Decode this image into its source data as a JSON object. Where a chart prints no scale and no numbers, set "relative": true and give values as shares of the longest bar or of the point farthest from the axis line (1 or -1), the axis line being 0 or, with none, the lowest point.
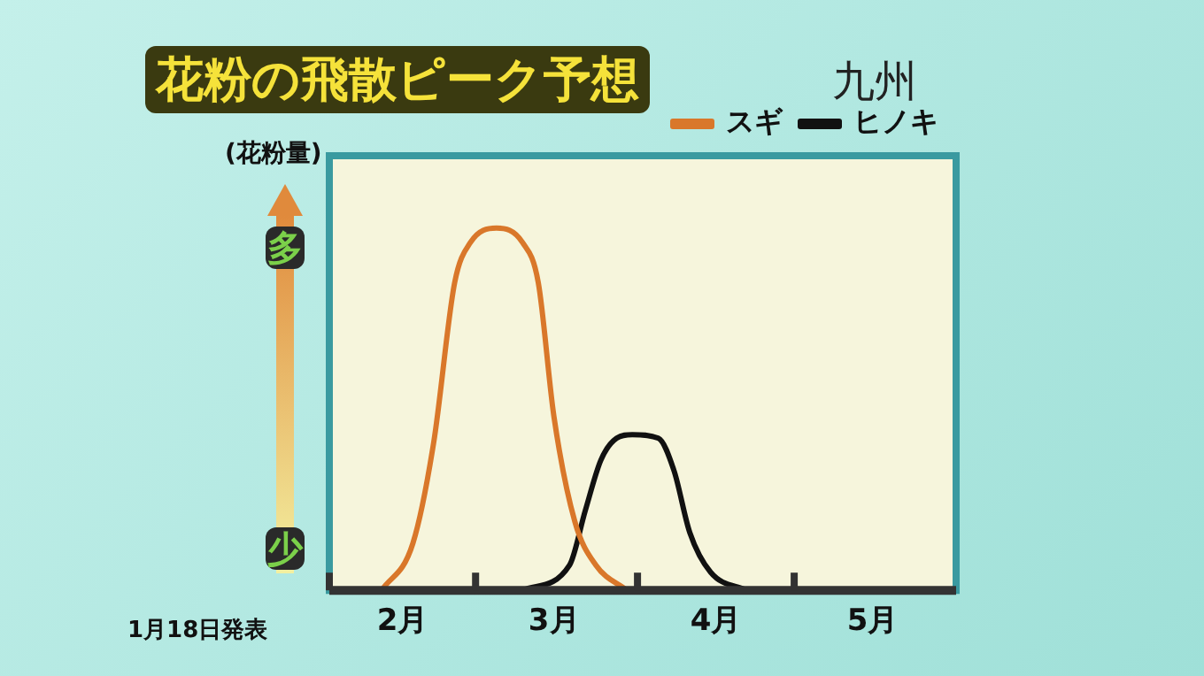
{
  "chart_data": {
    "type": "line",
    "title": "花粉の飛散ピーク予想",
    "subtitle": "九州",
    "ylabel": "(花粉量)",
    "relative": true,
    "xlim": [
      "--02-01",
      "--06-01"
    ],
    "xticks": [
      {
        "value": "--02-01",
        "label": null
      },
      {
        "value": "--02-15",
        "label": "2月"
      },
      {
        "value": "--03-01",
        "label": null
      },
      {
        "value": "--03-16",
        "label": "3月"
      },
      {
        "value": "--04-01",
        "label": null
      },
      {
        "value": "--04-16",
        "label": "4月"
      },
      {
        "value": "--05-01",
        "label": null
      },
      {
        "value": "--05-16",
        "label": "5月"
      }
    ],
    "series": [
      {
        "name": "スギ",
        "color": "#d9772a",
        "x": [
          "--02-11",
          "--02-17",
          "--02-21",
          "--02-25",
          "--02-28",
          "--03-05",
          "--03-10",
          "--03-13",
          "--03-16",
          "--03-20",
          "--03-24",
          "--03-30"
        ],
        "values": [
          0,
          0.13,
          0.41,
          0.85,
          0.96,
          1,
          0.96,
          0.85,
          0.48,
          0.19,
          0.07,
          0
        ]
      },
      {
        "name": "ヒノキ",
        "color": "#111111",
        "x": [
          "--03-10",
          "--03-19",
          "--03-22",
          "--03-25",
          "--03-28",
          "--03-31",
          "--04-05",
          "--04-08",
          "--04-11",
          "--04-15",
          "--04-22"
        ],
        "values": [
          0,
          0.07,
          0.22,
          0.36,
          0.42,
          0.43,
          0.42,
          0.33,
          0.16,
          0.05,
          0
        ]
      }
    ],
    "legend": "top right",
    "marker": "none",
    "line_style": "solid",
    "grid": false,
    "annotations": [
      "多",
      "少",
      "1月18日発表"
    ]
  }
}
